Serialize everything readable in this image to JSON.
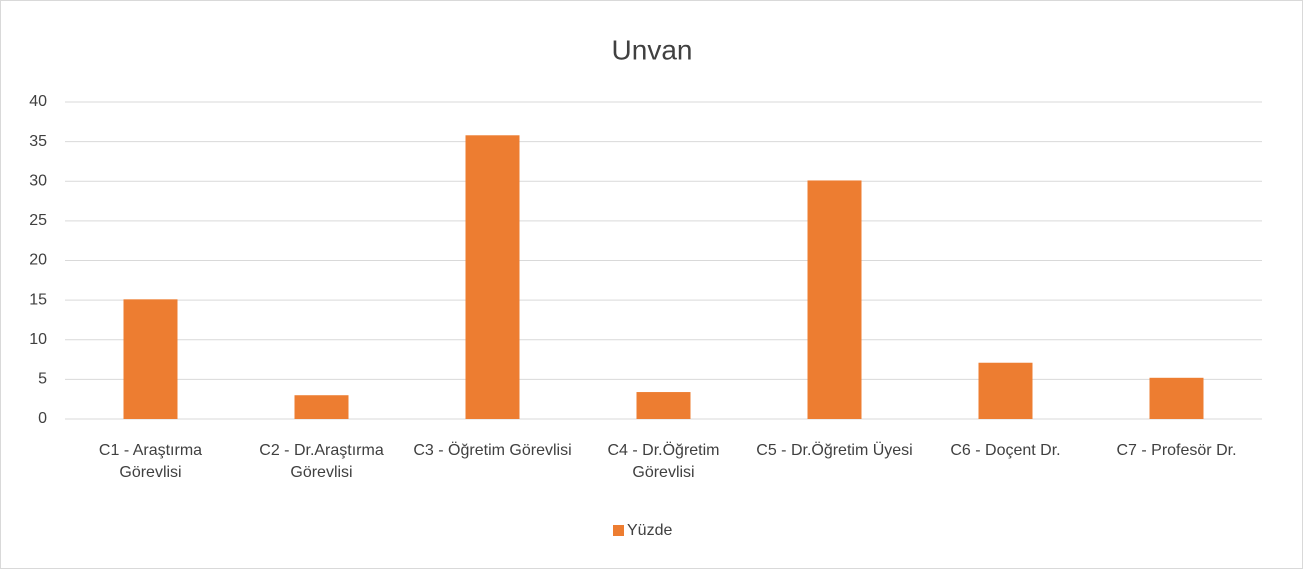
{
  "chart_data": {
    "type": "bar",
    "title": "Unvan",
    "categories": [
      "C1 - Araştırma Görevlisi",
      "C2 - Dr.Araştırma Görevlisi",
      "C3 - Öğretim Görevlisi",
      "C4 - Dr.Öğretim Görevlisi",
      "C5 - Dr.Öğretim Üyesi",
      "C6 - Doçent Dr.",
      "C7 - Profesör Dr."
    ],
    "series": [
      {
        "name": "Yüzde",
        "color": "#ed7d31",
        "values": [
          15.1,
          3.0,
          35.8,
          3.4,
          30.1,
          7.1,
          5.2
        ]
      }
    ],
    "ylim": [
      0,
      40
    ],
    "yticks": [
      0,
      5,
      10,
      15,
      20,
      25,
      30,
      35,
      40
    ],
    "grid": true,
    "legend": "bottom"
  }
}
